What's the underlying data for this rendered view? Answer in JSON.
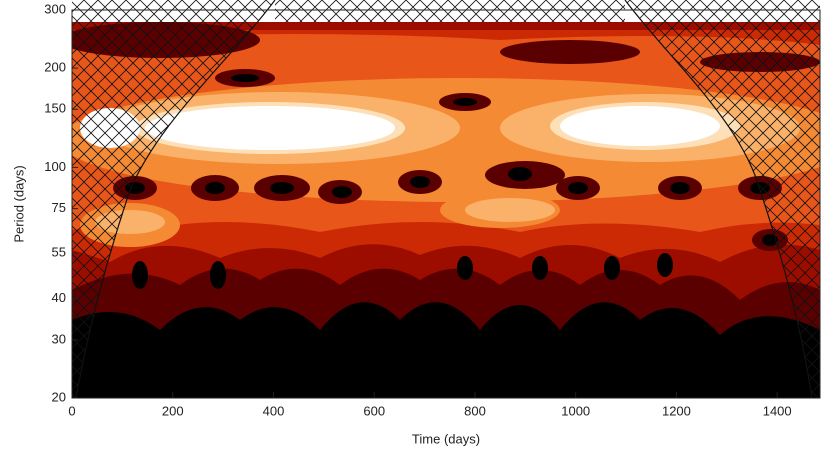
{
  "chart_data": {
    "type": "contour",
    "xlabel": "Time (days)",
    "ylabel": "Period (days)",
    "xlim": [
      0,
      1485
    ],
    "xticks": [
      0,
      200,
      400,
      600,
      800,
      1000,
      1200,
      1400
    ],
    "ylim": [
      20,
      300
    ],
    "yticks": [
      20,
      30,
      40,
      55,
      75,
      100,
      150,
      200,
      300
    ],
    "ylog": true
  }
}
